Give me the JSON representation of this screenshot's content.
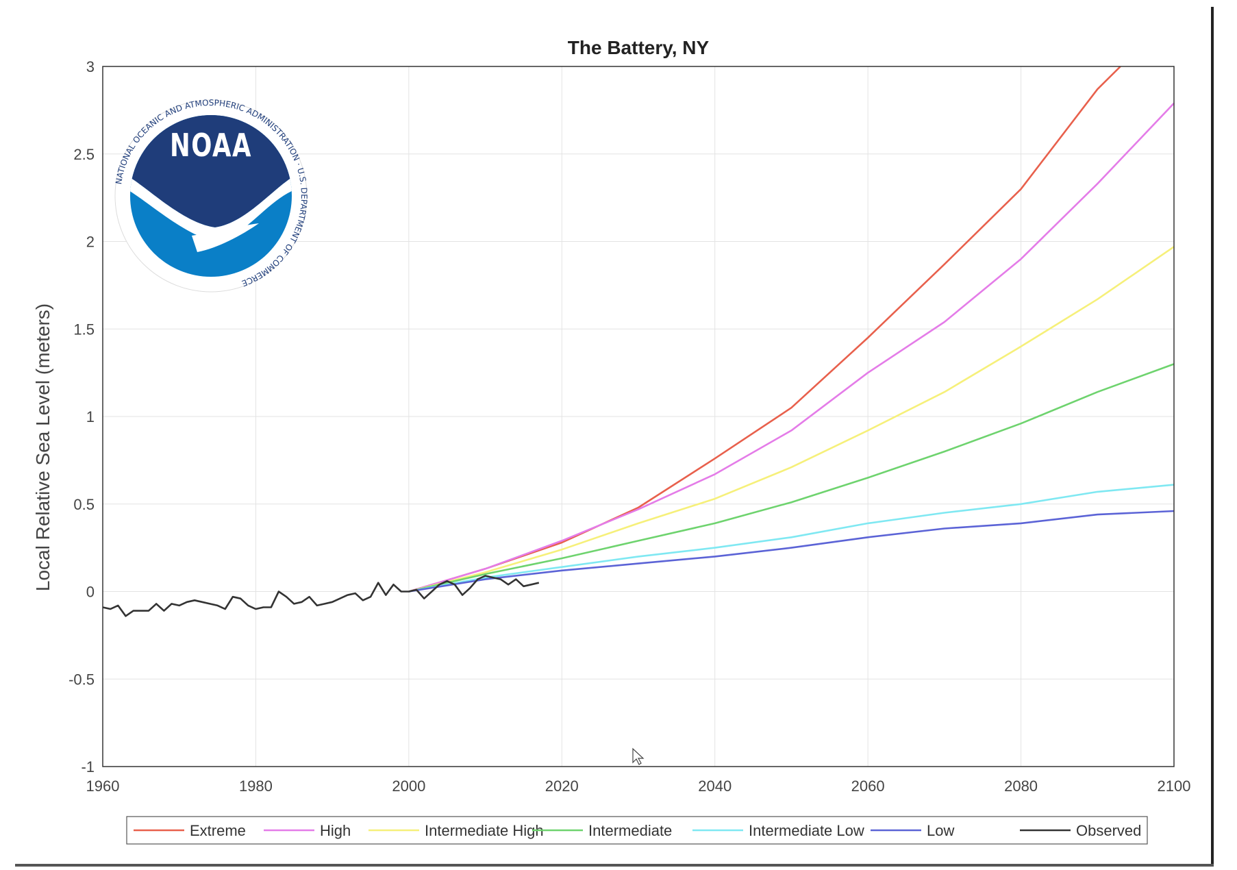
{
  "chart_data": {
    "type": "line",
    "title": "The Battery, NY",
    "xlabel": "",
    "ylabel": "Local Relative Sea Level (meters)",
    "xlim": [
      1960,
      2100
    ],
    "ylim": [
      -1,
      3
    ],
    "x_ticks": [
      "1960",
      "1980",
      "2000",
      "2020",
      "2040",
      "2060",
      "2080",
      "2100"
    ],
    "y_ticks": [
      "-1",
      "-0.5",
      "0",
      "0.5",
      "1",
      "1.5",
      "2",
      "2.5",
      "3"
    ],
    "grid": true,
    "legend_position": "bottom",
    "series": [
      {
        "name": "Extreme",
        "color": "#e8604c",
        "x": [
          2000,
          2010,
          2020,
          2030,
          2040,
          2050,
          2060,
          2070,
          2080,
          2090,
          2093
        ],
        "values": [
          0,
          0.13,
          0.28,
          0.48,
          0.76,
          1.05,
          1.45,
          1.87,
          2.3,
          2.87,
          3.0
        ]
      },
      {
        "name": "High",
        "color": "#e47ce8",
        "x": [
          2000,
          2010,
          2020,
          2030,
          2040,
          2050,
          2060,
          2070,
          2080,
          2090,
          2100
        ],
        "values": [
          0,
          0.13,
          0.29,
          0.47,
          0.67,
          0.92,
          1.25,
          1.54,
          1.9,
          2.33,
          2.79
        ]
      },
      {
        "name": "Intermediate High",
        "color": "#f6f07a",
        "x": [
          2000,
          2010,
          2020,
          2030,
          2040,
          2050,
          2060,
          2070,
          2080,
          2090,
          2100
        ],
        "values": [
          0,
          0.11,
          0.24,
          0.39,
          0.53,
          0.71,
          0.92,
          1.14,
          1.4,
          1.67,
          1.97
        ]
      },
      {
        "name": "Intermediate",
        "color": "#6ed36e",
        "x": [
          2000,
          2010,
          2020,
          2030,
          2040,
          2050,
          2060,
          2070,
          2080,
          2090,
          2100
        ],
        "values": [
          0,
          0.1,
          0.19,
          0.29,
          0.39,
          0.51,
          0.65,
          0.8,
          0.96,
          1.14,
          1.3
        ]
      },
      {
        "name": "Intermediate Low",
        "color": "#7fe8f2",
        "x": [
          2000,
          2010,
          2020,
          2030,
          2040,
          2050,
          2060,
          2070,
          2080,
          2090,
          2100
        ],
        "values": [
          0,
          0.08,
          0.14,
          0.2,
          0.25,
          0.31,
          0.39,
          0.45,
          0.5,
          0.57,
          0.61
        ]
      },
      {
        "name": "Low",
        "color": "#5b63d6",
        "x": [
          2000,
          2010,
          2020,
          2030,
          2040,
          2050,
          2060,
          2070,
          2080,
          2090,
          2100
        ],
        "values": [
          0,
          0.07,
          0.12,
          0.16,
          0.2,
          0.25,
          0.31,
          0.36,
          0.39,
          0.44,
          0.46
        ]
      },
      {
        "name": "Observed",
        "color": "#333333",
        "x": [
          1960,
          1961,
          1962,
          1963,
          1964,
          1965,
          1966,
          1967,
          1968,
          1969,
          1970,
          1971,
          1972,
          1973,
          1974,
          1975,
          1976,
          1977,
          1978,
          1979,
          1980,
          1981,
          1982,
          1983,
          1984,
          1985,
          1986,
          1987,
          1988,
          1989,
          1990,
          1991,
          1992,
          1993,
          1994,
          1995,
          1996,
          1997,
          1998,
          1999,
          2000,
          2001,
          2002,
          2003,
          2004,
          2005,
          2006,
          2007,
          2008,
          2009,
          2010,
          2011,
          2012,
          2013,
          2014,
          2015,
          2016,
          2017
        ],
        "values": [
          -0.09,
          -0.1,
          -0.08,
          -0.14,
          -0.11,
          -0.11,
          -0.11,
          -0.07,
          -0.11,
          -0.07,
          -0.08,
          -0.06,
          -0.05,
          -0.06,
          -0.07,
          -0.08,
          -0.1,
          -0.03,
          -0.04,
          -0.08,
          -0.1,
          -0.09,
          -0.09,
          0.0,
          -0.03,
          -0.07,
          -0.06,
          -0.03,
          -0.08,
          -0.07,
          -0.06,
          -0.04,
          -0.02,
          -0.01,
          -0.05,
          -0.03,
          0.05,
          -0.02,
          0.04,
          0.0,
          0.0,
          0.01,
          -0.04,
          0.0,
          0.04,
          0.06,
          0.04,
          -0.02,
          0.02,
          0.07,
          0.09,
          0.08,
          0.07,
          0.04,
          0.07,
          0.03,
          0.04,
          0.05
        ]
      }
    ]
  },
  "logo": {
    "name": "NOAA",
    "text": "NOAA",
    "ring_text": "NATIONAL OCEANIC AND ATMOSPHERIC ADMINISTRATION · U.S. DEPARTMENT OF COMMERCE",
    "colors": {
      "dark": "#1f3d7a",
      "light": "#0a7fc7"
    }
  },
  "cursor": {
    "icon": "mouse-pointer-icon"
  }
}
